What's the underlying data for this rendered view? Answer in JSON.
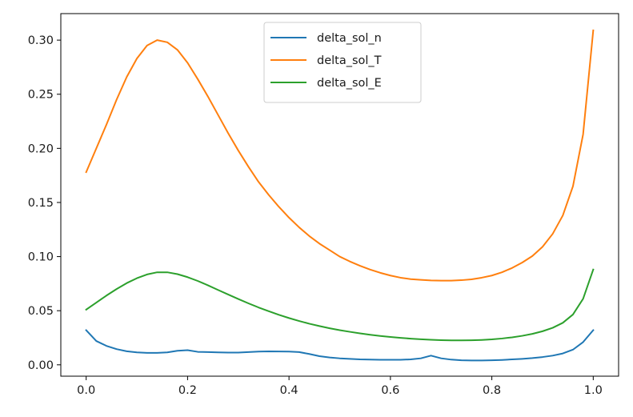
{
  "chart_data": {
    "type": "line",
    "title": "",
    "xlabel": "",
    "ylabel": "",
    "xlim": [
      -0.05,
      1.05
    ],
    "ylim": [
      -0.0105,
      0.3245
    ],
    "xticks": [
      0.0,
      0.2,
      0.4,
      0.6,
      0.8,
      1.0
    ],
    "xtick_labels": [
      "0.0",
      "0.2",
      "0.4",
      "0.6",
      "0.8",
      "1.0"
    ],
    "yticks": [
      0.0,
      0.05,
      0.1,
      0.15,
      0.2,
      0.25,
      0.3
    ],
    "ytick_labels": [
      "0.00",
      "0.05",
      "0.10",
      "0.15",
      "0.20",
      "0.25",
      "0.30"
    ],
    "grid": false,
    "legend_position": "upper center",
    "series": [
      {
        "name": "delta_sol_n",
        "color": "#1f77b4",
        "x": [
          0.0,
          0.02,
          0.04,
          0.06,
          0.08,
          0.1,
          0.12,
          0.14,
          0.16,
          0.18,
          0.2,
          0.22,
          0.24,
          0.26,
          0.28,
          0.3,
          0.32,
          0.34,
          0.36,
          0.38,
          0.4,
          0.42,
          0.44,
          0.46,
          0.48,
          0.5,
          0.52,
          0.54,
          0.56,
          0.58,
          0.6,
          0.62,
          0.64,
          0.66,
          0.68,
          0.7,
          0.72,
          0.74,
          0.76,
          0.78,
          0.8,
          0.82,
          0.84,
          0.86,
          0.88,
          0.9,
          0.92,
          0.94,
          0.96,
          0.98,
          1.0
        ],
        "y": [
          0.032,
          0.022,
          0.0175,
          0.0145,
          0.0125,
          0.0115,
          0.011,
          0.011,
          0.0115,
          0.013,
          0.0135,
          0.012,
          0.0118,
          0.0115,
          0.0113,
          0.0113,
          0.0118,
          0.0122,
          0.0124,
          0.0123,
          0.0122,
          0.0118,
          0.01,
          0.008,
          0.0068,
          0.006,
          0.0055,
          0.005,
          0.0048,
          0.0047,
          0.0047,
          0.0047,
          0.005,
          0.006,
          0.0085,
          0.006,
          0.0048,
          0.0042,
          0.004,
          0.004,
          0.0042,
          0.0045,
          0.005,
          0.0055,
          0.0062,
          0.0072,
          0.0085,
          0.0105,
          0.014,
          0.021,
          0.032
        ]
      },
      {
        "name": "delta_sol_T",
        "color": "#ff7f0e",
        "x": [
          0.0,
          0.02,
          0.04,
          0.06,
          0.08,
          0.1,
          0.12,
          0.14,
          0.16,
          0.18,
          0.2,
          0.22,
          0.24,
          0.26,
          0.28,
          0.3,
          0.32,
          0.34,
          0.36,
          0.38,
          0.4,
          0.42,
          0.44,
          0.46,
          0.48,
          0.5,
          0.52,
          0.54,
          0.56,
          0.58,
          0.6,
          0.62,
          0.64,
          0.66,
          0.68,
          0.7,
          0.72,
          0.74,
          0.76,
          0.78,
          0.8,
          0.82,
          0.84,
          0.86,
          0.88,
          0.9,
          0.92,
          0.94,
          0.96,
          0.98,
          1.0
        ],
        "y": [
          0.178,
          0.2,
          0.222,
          0.245,
          0.266,
          0.283,
          0.295,
          0.3,
          0.298,
          0.291,
          0.279,
          0.264,
          0.248,
          0.231,
          0.214,
          0.198,
          0.183,
          0.169,
          0.157,
          0.146,
          0.136,
          0.127,
          0.119,
          0.112,
          0.106,
          0.1,
          0.0955,
          0.0915,
          0.088,
          0.085,
          0.0825,
          0.0805,
          0.0792,
          0.0785,
          0.078,
          0.0778,
          0.0778,
          0.0782,
          0.079,
          0.0805,
          0.0825,
          0.0855,
          0.0895,
          0.0945,
          0.1005,
          0.109,
          0.121,
          0.138,
          0.165,
          0.213,
          0.309
        ]
      },
      {
        "name": "delta_sol_E",
        "color": "#2ca02c",
        "x": [
          0.0,
          0.02,
          0.04,
          0.06,
          0.08,
          0.1,
          0.12,
          0.14,
          0.16,
          0.18,
          0.2,
          0.22,
          0.24,
          0.26,
          0.28,
          0.3,
          0.32,
          0.34,
          0.36,
          0.38,
          0.4,
          0.42,
          0.44,
          0.46,
          0.48,
          0.5,
          0.52,
          0.54,
          0.56,
          0.58,
          0.6,
          0.62,
          0.64,
          0.66,
          0.68,
          0.7,
          0.72,
          0.74,
          0.76,
          0.78,
          0.8,
          0.82,
          0.84,
          0.86,
          0.88,
          0.9,
          0.92,
          0.94,
          0.96,
          0.98,
          1.0
        ],
        "y": [
          0.051,
          0.0575,
          0.064,
          0.07,
          0.0755,
          0.08,
          0.0835,
          0.0855,
          0.0855,
          0.0838,
          0.081,
          0.0775,
          0.0735,
          0.0692,
          0.065,
          0.0608,
          0.0568,
          0.053,
          0.0495,
          0.0462,
          0.0432,
          0.0405,
          0.038,
          0.0358,
          0.0338,
          0.032,
          0.0305,
          0.0291,
          0.0278,
          0.0267,
          0.0257,
          0.0249,
          0.0242,
          0.0236,
          0.0231,
          0.0228,
          0.0226,
          0.0226,
          0.0227,
          0.023,
          0.0235,
          0.0243,
          0.0254,
          0.0268,
          0.0286,
          0.031,
          0.0342,
          0.0388,
          0.0465,
          0.061,
          0.088
        ]
      }
    ]
  }
}
